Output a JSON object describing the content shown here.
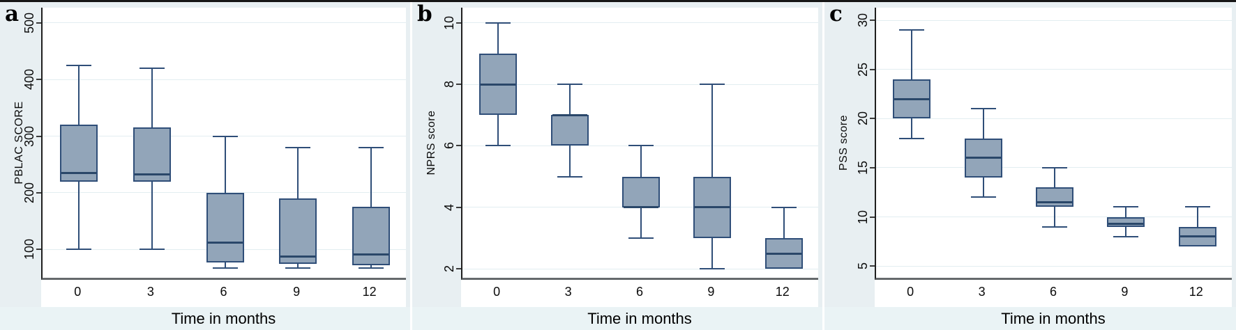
{
  "colors": {
    "background": "#e8eff2",
    "footer_background": "#eaf3f5",
    "plot_background": "#ffffff",
    "box_fill": "#92a5b9",
    "box_stroke": "#2f4e78",
    "median_line": "#2a4769",
    "gridline": "#e2edf1",
    "y_axis_line": "#1f1f1f",
    "x_axis_line": "#65696c",
    "text": "#000000",
    "figure_top_border": "#161616"
  },
  "chart_data": [
    {
      "type": "box",
      "panel_label": "a",
      "ylabel": "PBLAC SCORE",
      "xlabel": "Time in months",
      "categories": [
        "0",
        "3",
        "6",
        "9",
        "12"
      ],
      "y_ticks": [
        100,
        200,
        300,
        400,
        500
      ],
      "ylim": [
        50,
        527
      ],
      "grid": true,
      "boxes": [
        {
          "x": "0",
          "low": 100,
          "q1": 220,
          "median": 235,
          "q3": 320,
          "high": 425
        },
        {
          "x": "3",
          "low": 100,
          "q1": 220,
          "median": 232,
          "q3": 315,
          "high": 420
        },
        {
          "x": "6",
          "low": 67,
          "q1": 77,
          "median": 112,
          "q3": 200,
          "high": 300
        },
        {
          "x": "9",
          "low": 67,
          "q1": 75,
          "median": 88,
          "q3": 190,
          "high": 280
        },
        {
          "x": "12",
          "low": 67,
          "q1": 72,
          "median": 91,
          "q3": 175,
          "high": 280
        }
      ]
    },
    {
      "type": "box",
      "panel_label": "b",
      "ylabel": "NPRS score",
      "xlabel": "Time in months",
      "categories": [
        "0",
        "3",
        "6",
        "9",
        "12"
      ],
      "y_ticks": [
        2,
        4,
        6,
        8,
        10
      ],
      "ylim": [
        1.71,
        10.49
      ],
      "grid": true,
      "boxes": [
        {
          "x": "0",
          "low": 6,
          "q1": 7,
          "median": 8,
          "q3": 9,
          "high": 10
        },
        {
          "x": "3",
          "low": 5,
          "q1": 6,
          "median": 7,
          "q3": 7,
          "high": 8
        },
        {
          "x": "6",
          "low": 3,
          "q1": 4,
          "median": 4,
          "q3": 5,
          "high": 6
        },
        {
          "x": "9",
          "low": 2,
          "q1": 3,
          "median": 4,
          "q3": 5,
          "high": 8
        },
        {
          "x": "12",
          "low": 2,
          "q1": 2,
          "median": 2.5,
          "q3": 3,
          "high": 4
        }
      ]
    },
    {
      "type": "box",
      "panel_label": "c",
      "ylabel": "PSS score",
      "xlabel": "Time in months",
      "categories": [
        "0",
        "3",
        "6",
        "9",
        "12"
      ],
      "y_ticks": [
        5,
        10,
        15,
        20,
        25,
        30
      ],
      "ylim": [
        3.8,
        31.3
      ],
      "grid": true,
      "boxes": [
        {
          "x": "0",
          "low": 18,
          "q1": 20,
          "median": 22,
          "q3": 24,
          "high": 29
        },
        {
          "x": "3",
          "low": 12,
          "q1": 14,
          "median": 16,
          "q3": 18,
          "high": 21
        },
        {
          "x": "6",
          "low": 9,
          "q1": 11,
          "median": 11.5,
          "q3": 13,
          "high": 15
        },
        {
          "x": "9",
          "low": 8,
          "q1": 9,
          "median": 9.3,
          "q3": 10,
          "high": 11
        },
        {
          "x": "12",
          "low": 7,
          "q1": 7,
          "median": 8,
          "q3": 9,
          "high": 11
        }
      ]
    }
  ]
}
